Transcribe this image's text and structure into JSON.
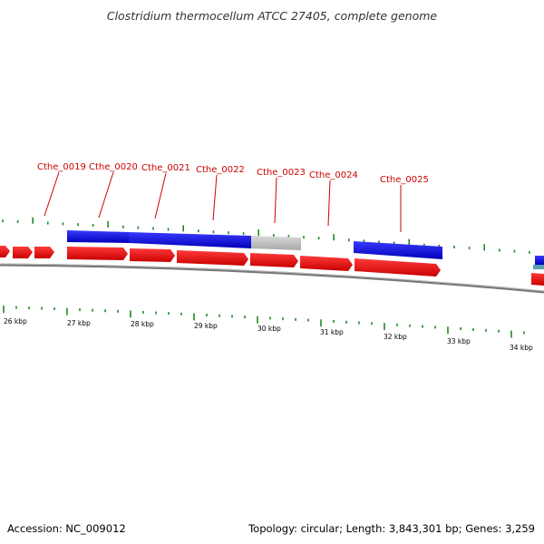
{
  "title": "Clostridium thermocellum ATCC 27405, complete genome",
  "gene_labels": [
    "Cthe_0019",
    "Cthe_0020",
    "Cthe_0021",
    "Cthe_0022",
    "Cthe_0023",
    "Cthe_0024",
    "Cthe_0025"
  ],
  "kbp_labels": [
    "26 kbp",
    "27 kbp",
    "28 kbp",
    "29 kbp",
    "30 kbp",
    "31 kbp",
    "32 kbp",
    "33 kbp",
    "34 kbp"
  ],
  "colors": {
    "forward_feature": "#0000dd",
    "reverse_feature": "#ee0000",
    "other_feature": "#bbbbbb",
    "gc_tick": "#228822",
    "label_text": "#cc0000",
    "backbone": "#777777"
  },
  "footer": {
    "accession": "Accession: NC_009012",
    "summary": "Topology: circular; Length: 3,843,301 bp; Genes: 3,259"
  }
}
